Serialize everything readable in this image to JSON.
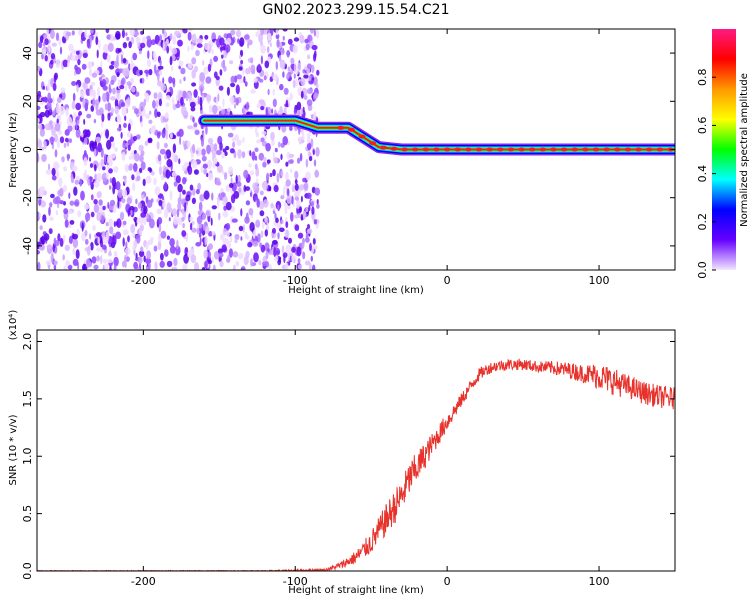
{
  "title": "GN02.2023.299.15.54.C21",
  "chart_data": [
    {
      "type": "heatmap",
      "name": "spectrogram",
      "xlabel": "Height of straight line (km)",
      "ylabel": "Frequency (Hz)",
      "xlim": [
        -270,
        150
      ],
      "ylim": [
        -50,
        50
      ],
      "x_ticks": [
        -200,
        -100,
        0,
        100
      ],
      "x_tick_labels": [
        "-200",
        "-100",
        "0",
        "100"
      ],
      "y_ticks": [
        -40,
        -20,
        0,
        20,
        40
      ],
      "y_tick_labels": [
        "-40",
        "-20",
        "0",
        "20",
        "40"
      ],
      "noise_region": {
        "x": [
          -270,
          -85
        ],
        "y": [
          -50,
          50
        ]
      },
      "ridge": [
        {
          "x": -160,
          "y": 12
        },
        {
          "x": -145,
          "y": 12
        },
        {
          "x": -130,
          "y": 12
        },
        {
          "x": -115,
          "y": 12
        },
        {
          "x": -100,
          "y": 12
        },
        {
          "x": -85,
          "y": 9
        },
        {
          "x": -65,
          "y": 9
        },
        {
          "x": -55,
          "y": 5
        },
        {
          "x": -45,
          "y": 1
        },
        {
          "x": -30,
          "y": 0
        },
        {
          "x": 0,
          "y": 0
        },
        {
          "x": 50,
          "y": 0
        },
        {
          "x": 100,
          "y": 0
        },
        {
          "x": 150,
          "y": 0
        }
      ],
      "colorbar": {
        "label": "Normalized spectral amplitude",
        "range": [
          0.0,
          1.0
        ],
        "ticks": [
          0.0,
          0.2,
          0.4,
          0.6,
          0.8
        ],
        "tick_labels": [
          "0.0",
          "0.2",
          "0.4",
          "0.6",
          "0.8"
        ],
        "colors": [
          "#f3e6ff",
          "#6600ff",
          "#0000ff",
          "#00ffff",
          "#00ff00",
          "#ffff00",
          "#ff9900",
          "#ff0000",
          "#ff1a80"
        ]
      },
      "grid": false
    },
    {
      "type": "line",
      "name": "snr",
      "xlabel": "Height of straight line (km)",
      "ylabel": "SNR (10 * v/v)",
      "y_multiplier": "(x10⁴)",
      "xlim": [
        -270,
        150
      ],
      "ylim": [
        0,
        2.1
      ],
      "x_ticks": [
        -200,
        -100,
        0,
        100
      ],
      "x_tick_labels": [
        "-200",
        "-100",
        "0",
        "100"
      ],
      "y_ticks": [
        0.0,
        0.5,
        1.0,
        1.5,
        2.0
      ],
      "y_tick_labels": [
        "0.0",
        "0.5",
        "1.0",
        "1.5",
        "2.0"
      ],
      "color": "#e8322c",
      "series": [
        {
          "x": [
            -270,
            -200,
            -120,
            -80,
            -70,
            -60,
            -55,
            -50,
            -45,
            -40,
            -35,
            -30,
            -25,
            -20,
            -15,
            -10,
            -5,
            0,
            5,
            10,
            15,
            20,
            25,
            30,
            40,
            50,
            60,
            70,
            80,
            90,
            100,
            110,
            120,
            130,
            140,
            150
          ],
          "values": [
            0.0,
            0.0,
            0.0,
            0.01,
            0.05,
            0.12,
            0.18,
            0.25,
            0.35,
            0.45,
            0.55,
            0.65,
            0.8,
            0.9,
            1.0,
            1.1,
            1.2,
            1.3,
            1.4,
            1.5,
            1.6,
            1.7,
            1.75,
            1.78,
            1.8,
            1.8,
            1.78,
            1.77,
            1.75,
            1.72,
            1.7,
            1.65,
            1.6,
            1.55,
            1.52,
            1.5
          ],
          "noise": [
            0.005,
            0.005,
            0.005,
            0.01,
            0.03,
            0.06,
            0.08,
            0.1,
            0.12,
            0.14,
            0.15,
            0.15,
            0.15,
            0.14,
            0.12,
            0.1,
            0.09,
            0.08,
            0.07,
            0.06,
            0.06,
            0.06,
            0.05,
            0.05,
            0.05,
            0.05,
            0.05,
            0.06,
            0.07,
            0.08,
            0.12,
            0.12,
            0.1,
            0.1,
            0.1,
            0.1
          ]
        }
      ],
      "grid": false
    }
  ]
}
